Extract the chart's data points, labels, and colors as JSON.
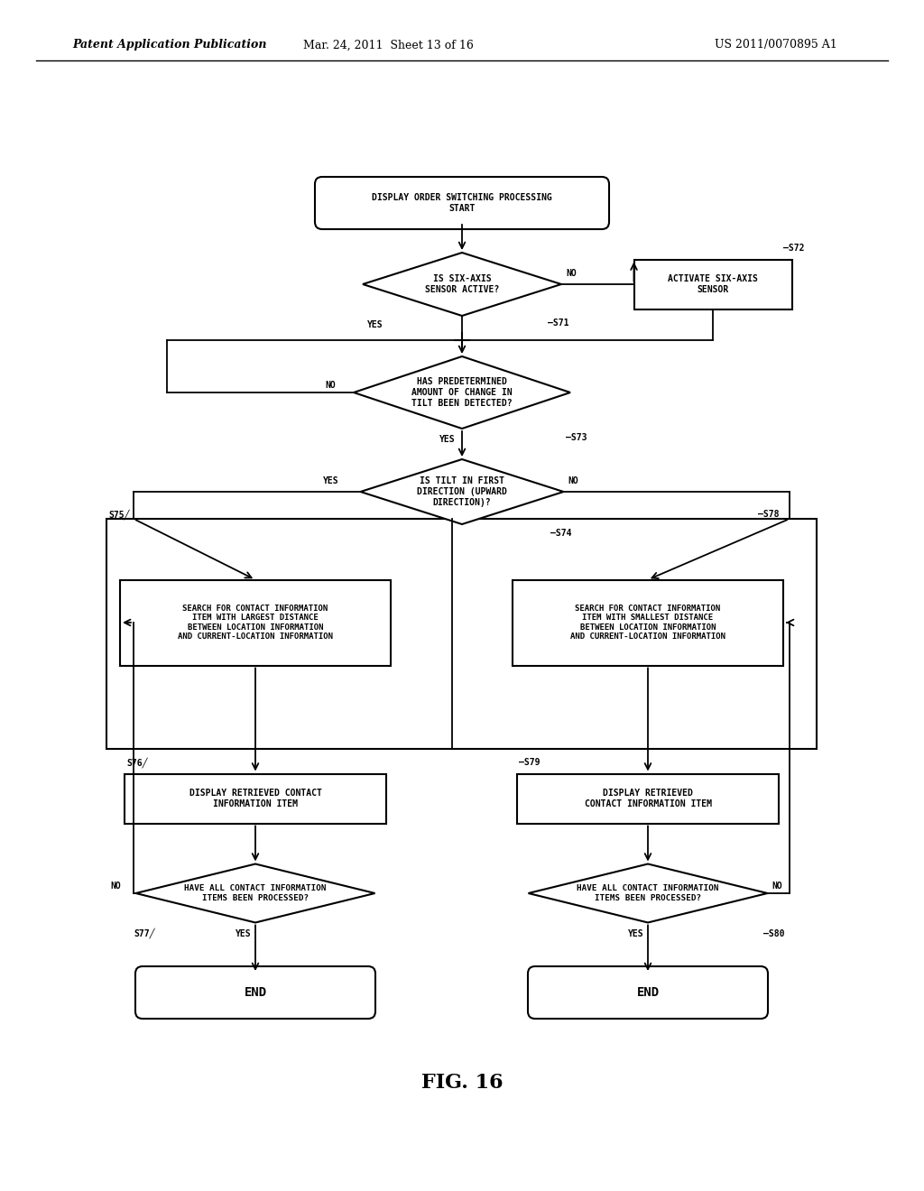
{
  "bg_color": "#ffffff",
  "header_left": "Patent Application Publication",
  "header_mid": "Mar. 24, 2011  Sheet 13 of 16",
  "header_right": "US 2011/0070895 A1",
  "fig_label": "FIG. 16",
  "font_size_node": 7.0,
  "font_size_header": 9,
  "font_size_label": 7,
  "font_size_fig": 16
}
